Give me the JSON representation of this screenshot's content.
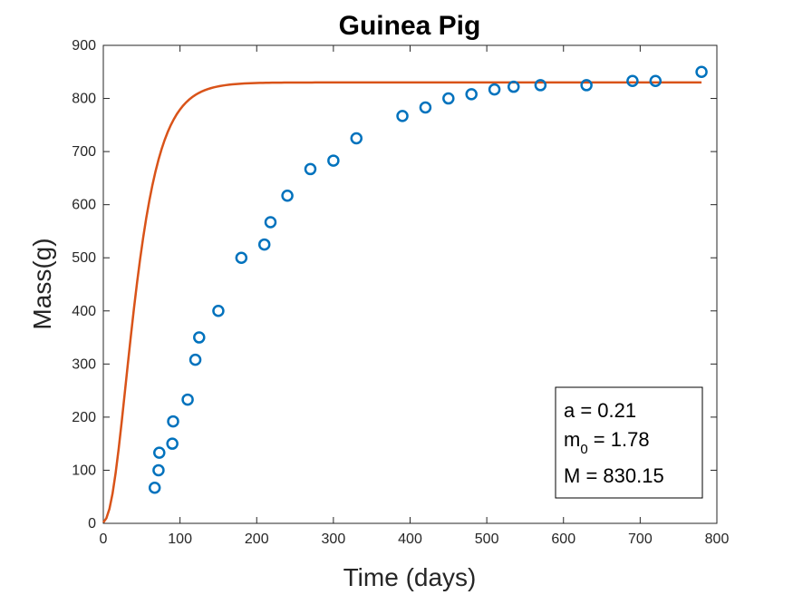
{
  "chart_data": {
    "type": "scatter",
    "title": "Guinea Pig",
    "xlabel": "Time (days)",
    "ylabel": "Mass(g)",
    "xlim": [
      0,
      800
    ],
    "ylim": [
      0,
      900
    ],
    "xticks": [
      0,
      100,
      200,
      300,
      400,
      500,
      600,
      700,
      800
    ],
    "yticks": [
      0,
      100,
      200,
      300,
      400,
      500,
      600,
      700,
      800,
      900
    ],
    "grid": false,
    "series": [
      {
        "kind": "points",
        "marker": "circle-open",
        "color": "#0072BD",
        "x": [
          67,
          72,
          73,
          90,
          91,
          110,
          120,
          125,
          150,
          180,
          210,
          218,
          240,
          270,
          300,
          330,
          390,
          420,
          450,
          480,
          510,
          535,
          570,
          630,
          690,
          720,
          780
        ],
        "y": [
          67,
          100,
          133,
          150,
          192,
          233,
          308,
          350,
          400,
          500,
          525,
          567,
          617,
          667,
          683,
          725,
          767,
          783,
          800,
          808,
          817,
          822,
          825,
          825,
          833,
          833,
          850
        ]
      },
      {
        "kind": "fitted-curve",
        "color": "#D95319",
        "model": "logistic",
        "params": {
          "a": 0.21,
          "m0": 1.78,
          "M": 830.15
        }
      }
    ],
    "annotation": {
      "placement": "bottom-right",
      "a_line": "a = 0.21",
      "m_symbol": "m",
      "m_subscript": "0",
      "m_value": " = 1.78",
      "M_line": "M = 830.15"
    }
  }
}
